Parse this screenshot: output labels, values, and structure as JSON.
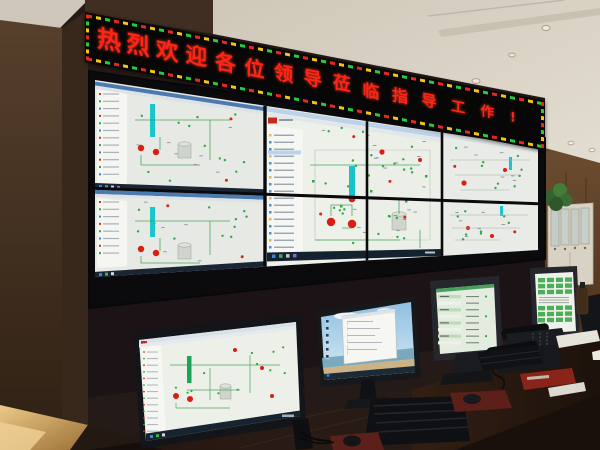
{
  "banner": {
    "text": "热烈欢迎各位领导莅临指导工作!",
    "led_text_color": "#ff2416",
    "led_bg_color": "#070707",
    "dash_colors": [
      "#e8281e",
      "#f5c511",
      "#27c93f"
    ]
  },
  "video_wall": {
    "rows": 2,
    "columns": 4,
    "screens": [
      {
        "name": "wall-screen-r1c1",
        "content": "scada-hmi-process-diagram"
      },
      {
        "name": "wall-screen-r2c1",
        "content": "scada-hmi-process-diagram"
      },
      {
        "name": "wall-screen-r1c2",
        "content": "monitoring-app-tree-and-diagram"
      },
      {
        "name": "wall-screen-r2c2",
        "content": "monitoring-app-tree-and-diagram"
      },
      {
        "name": "wall-screen-r1c3",
        "content": "process-flow-diagram"
      },
      {
        "name": "wall-screen-r2c3",
        "content": "process-flow-diagram"
      },
      {
        "name": "wall-screen-r1c4",
        "content": "process-flow-diagram"
      },
      {
        "name": "wall-screen-r2c4",
        "content": "process-flow-diagram"
      }
    ]
  },
  "desk": {
    "monitors": [
      {
        "name": "desk-monitor-left",
        "content": "scada-hmi-process-diagram"
      },
      {
        "name": "desk-monitor-center",
        "content": "windows-desktop-open-document"
      },
      {
        "name": "desk-monitor-right-1",
        "content": "green-data-table"
      },
      {
        "name": "desk-monitor-right-2",
        "content": "green-data-table"
      }
    ],
    "equipment": [
      "keyboard",
      "mouse",
      "red-mouse-pads",
      "desk-telephones",
      "documents",
      "red-folder",
      "drink-bottle"
    ]
  },
  "room": {
    "features": [
      "cream-ceiling-with-downlights",
      "wood-panel-walls",
      "white-glass-cabinet",
      "potted-plant",
      "warm-floor-light"
    ]
  }
}
